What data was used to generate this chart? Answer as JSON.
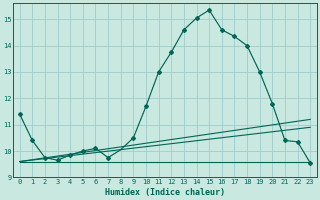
{
  "xlabel": "Humidex (Indice chaleur)",
  "bg_color": "#c8e8e0",
  "grid_color": "#a0cccc",
  "line_color": "#006655",
  "xlim": [
    -0.5,
    23.5
  ],
  "ylim": [
    9.0,
    15.6
  ],
  "yticks": [
    9,
    10,
    11,
    12,
    13,
    14,
    15
  ],
  "xticks": [
    0,
    1,
    2,
    3,
    4,
    5,
    6,
    7,
    8,
    9,
    10,
    11,
    12,
    13,
    14,
    15,
    16,
    17,
    18,
    19,
    20,
    21,
    22,
    23
  ],
  "main_x": [
    0,
    1,
    2,
    3,
    4,
    5,
    6,
    7,
    8,
    9,
    10,
    11,
    12,
    13,
    14,
    15,
    16,
    17,
    18,
    19,
    20,
    21,
    22,
    23
  ],
  "main_y": [
    11.4,
    10.4,
    9.75,
    9.65,
    9.85,
    10.0,
    10.1,
    9.75,
    10.05,
    10.5,
    11.7,
    13.0,
    13.75,
    14.6,
    15.05,
    15.35,
    14.6,
    14.35,
    14.0,
    13.0,
    11.8,
    10.4,
    10.35,
    9.55
  ],
  "second_x": [
    0,
    1,
    2,
    3,
    4,
    5,
    6,
    7,
    8,
    9,
    10,
    11,
    12,
    13,
    14,
    15,
    16,
    17,
    18,
    19,
    20,
    21,
    22,
    23
  ],
  "second_y": [
    11.4,
    10.4,
    9.75,
    9.65,
    9.85,
    10.0,
    10.1,
    9.75,
    10.05,
    10.5,
    11.7,
    13.0,
    13.75,
    14.6,
    15.05,
    15.35,
    14.6,
    14.35,
    14.0,
    13.0,
    11.8,
    10.4,
    10.35,
    9.55
  ],
  "flat_x": [
    0,
    8,
    9,
    10,
    11,
    12,
    13,
    14,
    15,
    16,
    17,
    18,
    19,
    20,
    21,
    22,
    23
  ],
  "flat_y": [
    9.6,
    9.6,
    9.6,
    9.6,
    9.6,
    9.6,
    9.6,
    9.6,
    9.6,
    9.6,
    9.6,
    9.6,
    9.6,
    9.6,
    9.6,
    9.6,
    9.6
  ],
  "marker_x": [
    0,
    1,
    2,
    3,
    4,
    5,
    6,
    7,
    9,
    10,
    11,
    12,
    13,
    14,
    15,
    16,
    17,
    18,
    19,
    20,
    21,
    22,
    23
  ],
  "marker_y": [
    11.4,
    10.4,
    9.75,
    9.65,
    9.85,
    10.0,
    10.1,
    9.75,
    10.5,
    11.7,
    13.0,
    13.75,
    14.6,
    15.05,
    15.35,
    14.6,
    14.35,
    14.0,
    13.0,
    11.8,
    10.4,
    10.35,
    9.55
  ]
}
